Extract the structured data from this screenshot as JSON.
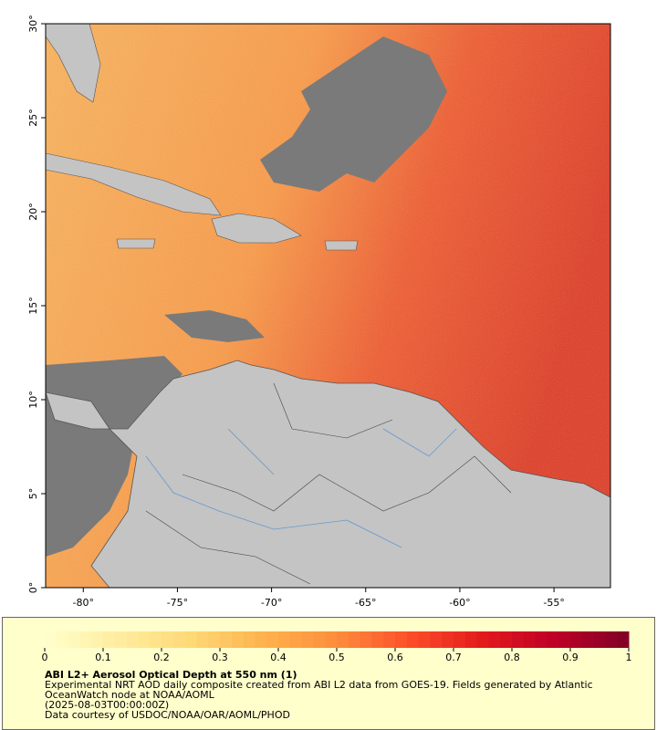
{
  "map": {
    "xlim": [
      -82,
      -52
    ],
    "ylim": [
      0,
      30
    ],
    "xticks": [
      {
        "value": -80,
        "label": "-80°"
      },
      {
        "value": -75,
        "label": "-75°"
      },
      {
        "value": -70,
        "label": "-70°"
      },
      {
        "value": -65,
        "label": "-65°"
      },
      {
        "value": -60,
        "label": "-60°"
      },
      {
        "value": -55,
        "label": "-55°"
      }
    ],
    "yticks": [
      {
        "value": 0,
        "label": "0°"
      },
      {
        "value": 5,
        "label": "5°"
      },
      {
        "value": 10,
        "label": "10°"
      },
      {
        "value": 15,
        "label": "15°"
      },
      {
        "value": 20,
        "label": "20°"
      },
      {
        "value": 25,
        "label": "25°"
      },
      {
        "value": 30,
        "label": "30°"
      }
    ]
  },
  "colorbar": {
    "range": [
      0,
      1
    ],
    "ticks": [
      0,
      0.1,
      0.2,
      0.3,
      0.4,
      0.5,
      0.6,
      0.7,
      0.8,
      0.9,
      1
    ],
    "colors": [
      "#ffffcc",
      "#ffeda0",
      "#fed976",
      "#feb24c",
      "#fd8d3c",
      "#fc4e2a",
      "#e31a1c",
      "#bd0026",
      "#800026"
    ]
  },
  "caption": {
    "title": "ABI L2+ Aerosol Optical Depth at 550 nm (1)",
    "description": [
      "Experimental NRT AOD daily composite created from ABI L2 data from GOES-19. Fields generated by Atlantic",
      "OceanWatch node at NOAA/AOML"
    ],
    "date": "(2025-08-03T00:00:00Z)",
    "credit": "Data courtesy of USDOC/NOAA/OAR/AOML/PHOD"
  }
}
